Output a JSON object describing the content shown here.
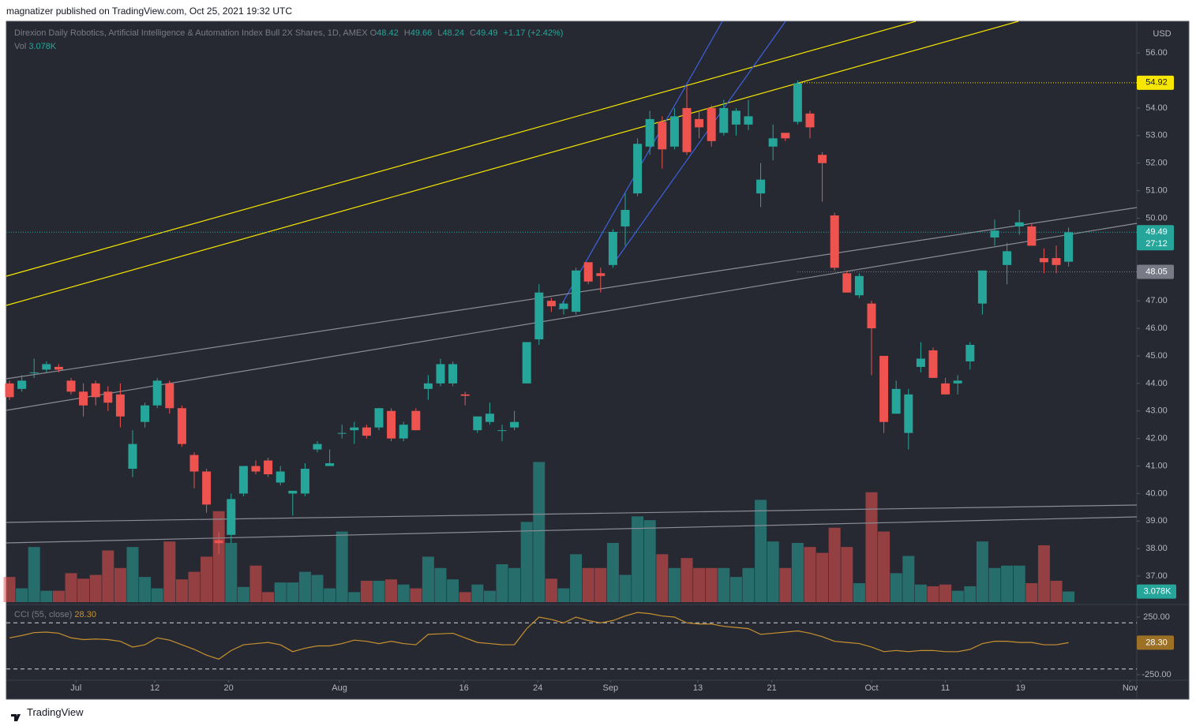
{
  "chart_data": {
    "type": "candlestick",
    "publisher_note": "magnatizer published on TradingView.com, Oct 25, 2021 19:32 UTC",
    "symbol": "Direxion Daily Robotics, Artificial Intelligence & Automation Index Bull 2X Shares, 1D, AMEX",
    "ohlc_keys": [
      "O",
      "H",
      "L",
      "C"
    ],
    "header": {
      "open": 48.42,
      "high": 49.66,
      "low": 48.24,
      "close": 49.49,
      "change": "+1.17 (+2.42%)"
    },
    "currency": "USD",
    "brand": "TradingView",
    "up_color": "#26a69a",
    "down_color": "#ef5350",
    "open": [
      44.0,
      43.8,
      44.4,
      44.5,
      44.6,
      44.1,
      43.7,
      44.0,
      43.7,
      43.6,
      40.9,
      42.6,
      43.2,
      44.0,
      43.1,
      41.4,
      40.8,
      38.3,
      38.5,
      40.0,
      41.0,
      41.2,
      40.4,
      40.0,
      40.0,
      41.6,
      41.0,
      42.2,
      42.3,
      42.4,
      42.4,
      43.0,
      42.0,
      43.0,
      43.8,
      44.0,
      44.0,
      43.6,
      42.3,
      42.6,
      42.3,
      42.4,
      44.0,
      45.6,
      47.0,
      46.7,
      46.6,
      48.4,
      48.0,
      48.3,
      49.7,
      50.9,
      52.6,
      53.5,
      52.6,
      54.0,
      53.6,
      54.0,
      53.1,
      53.4,
      53.4,
      50.9,
      52.6,
      53.1,
      53.5,
      53.8,
      52.3,
      50.1,
      48.0,
      47.2,
      46.9,
      45.0,
      42.9,
      42.2,
      44.6,
      45.2,
      44.0,
      44.0,
      44.8,
      46.9,
      49.3,
      48.3,
      49.7,
      49.7,
      48.55,
      48.55,
      48.42
    ],
    "high": [
      44.1,
      44.3,
      44.9,
      44.8,
      44.7,
      44.2,
      44.0,
      44.1,
      43.9,
      44.0,
      42.3,
      43.3,
      44.2,
      44.1,
      43.2,
      41.5,
      40.9,
      38.6,
      40.0,
      41.0,
      41.2,
      41.3,
      41.0,
      40.1,
      41.1,
      41.9,
      41.6,
      42.5,
      42.6,
      42.5,
      43.1,
      43.1,
      42.6,
      43.1,
      44.3,
      44.9,
      44.8,
      43.7,
      42.8,
      43.3,
      42.5,
      43.0,
      45.5,
      47.6,
      47.1,
      47.0,
      48.2,
      48.4,
      48.2,
      49.6,
      50.9,
      52.9,
      53.9,
      53.7,
      54.0,
      54.8,
      53.9,
      54.1,
      54.3,
      54.0,
      54.3,
      52.0,
      53.4,
      53.1,
      55.0,
      53.9,
      52.4,
      50.2,
      48.1,
      48.0,
      47.0,
      45.0,
      44.1,
      43.8,
      45.5,
      45.3,
      44.2,
      44.3,
      45.5,
      48.1,
      49.95,
      49.1,
      50.3,
      49.8,
      48.9,
      49.0,
      49.66
    ],
    "low": [
      43.4,
      43.7,
      44.2,
      44.4,
      44.4,
      43.6,
      42.8,
      43.2,
      43.0,
      42.4,
      40.6,
      42.4,
      43.1,
      42.9,
      41.7,
      40.2,
      39.3,
      37.8,
      38.2,
      39.9,
      40.7,
      40.6,
      40.3,
      39.2,
      39.9,
      41.5,
      41.0,
      42.0,
      41.8,
      42.0,
      42.3,
      41.9,
      41.9,
      42.3,
      43.4,
      43.9,
      43.9,
      43.2,
      42.2,
      42.5,
      41.9,
      42.3,
      44.0,
      45.4,
      46.6,
      46.5,
      46.5,
      47.6,
      47.3,
      48.2,
      49.0,
      50.8,
      52.3,
      51.8,
      52.5,
      52.3,
      52.9,
      52.6,
      53.0,
      53.0,
      53.2,
      50.4,
      52.1,
      52.8,
      53.4,
      52.9,
      50.6,
      48.1,
      47.3,
      47.1,
      44.3,
      42.2,
      42.9,
      41.6,
      44.4,
      44.2,
      43.6,
      43.6,
      44.5,
      46.5,
      49.0,
      47.6,
      49.4,
      49.0,
      48.0,
      48.0,
      48.24
    ],
    "close": [
      43.5,
      44.1,
      44.4,
      44.7,
      44.5,
      43.7,
      43.2,
      43.5,
      43.3,
      42.8,
      41.8,
      43.2,
      44.1,
      43.1,
      41.8,
      40.8,
      39.6,
      38.2,
      39.8,
      41.0,
      40.8,
      40.7,
      40.8,
      40.1,
      40.9,
      41.8,
      41.1,
      42.2,
      42.4,
      42.1,
      43.1,
      42.0,
      42.5,
      42.3,
      44.0,
      44.7,
      44.7,
      43.55,
      42.8,
      42.9,
      42.3,
      42.6,
      45.5,
      47.3,
      46.8,
      46.9,
      48.1,
      47.7,
      47.9,
      49.5,
      50.3,
      52.7,
      53.6,
      52.5,
      53.7,
      52.4,
      53.3,
      52.8,
      54.0,
      53.9,
      53.7,
      51.4,
      52.9,
      52.9,
      54.9,
      53.3,
      52.0,
      48.2,
      47.3,
      47.9,
      46.0,
      42.6,
      43.8,
      43.6,
      44.9,
      44.2,
      43.6,
      44.1,
      45.4,
      48.1,
      49.55,
      48.8,
      49.85,
      49.0,
      48.4,
      48.3,
      49.49
    ],
    "volume": [
      7.3,
      4.0,
      16,
      3.3,
      3.3,
      8.4,
      6.8,
      7.9,
      15,
      9.9,
      16,
      7.3,
      4.0,
      17.6,
      6.6,
      8.8,
      13.2,
      26.4,
      17.2,
      4.4,
      10.6,
      2.9,
      5.7,
      5.7,
      8.8,
      7.9,
      4.0,
      20.5,
      2.9,
      6.2,
      6.2,
      6.6,
      5.1,
      4.0,
      13.2,
      9.9,
      6.6,
      2.9,
      5.1,
      3.3,
      11,
      9.9,
      23.3,
      40.7,
      6.8,
      4.0,
      13.9,
      9.9,
      9.9,
      17.2,
      7.9,
      24.9,
      23.8,
      13.9,
      9.9,
      12.8,
      9.9,
      9.9,
      9.9,
      7.3,
      9.9,
      29.7,
      17.6,
      9.9,
      17.2,
      16,
      14.3,
      21.6,
      16,
      5.5,
      31.9,
      20.5,
      8.4,
      13.4,
      5.1,
      4.6,
      5.1,
      3.3,
      4.6,
      17.6,
      9.9,
      10.6,
      10.6,
      5.5,
      16.5,
      6.2,
      3.078
    ],
    "volume_title": "Vol",
    "volume_lim": [
      0,
      55
    ],
    "volume_tag": {
      "value": 3.078,
      "label": "3.078K"
    },
    "ylim": [
      36.0,
      57.15
    ],
    "yticks": [
      {
        "value": 37,
        "label": "37.00"
      },
      {
        "value": 38,
        "label": "38.00"
      },
      {
        "value": 39,
        "label": "39.00"
      },
      {
        "value": 40,
        "label": "40.00"
      },
      {
        "value": 41,
        "label": "41.00"
      },
      {
        "value": 42,
        "label": "42.00"
      },
      {
        "value": 43,
        "label": "43.00"
      },
      {
        "value": 44,
        "label": "44.00"
      },
      {
        "value": 45,
        "label": "45.00"
      },
      {
        "value": 46,
        "label": "46.00"
      },
      {
        "value": 47,
        "label": "47.00"
      },
      {
        "value": 48,
        "label": "48.00"
      },
      {
        "value": 49,
        "label": "49.00"
      },
      {
        "value": 50,
        "label": "50.00"
      },
      {
        "value": 51,
        "label": "51.00"
      },
      {
        "value": 52,
        "label": "52.00"
      },
      {
        "value": 53,
        "label": "53.00"
      },
      {
        "value": 54,
        "label": "54.00"
      },
      {
        "value": 55,
        "label": "55.00"
      },
      {
        "value": 56,
        "label": "56.00"
      }
    ],
    "xticks": [
      {
        "value": 5.4,
        "label": "Jul"
      },
      {
        "value": 11.8,
        "label": "12"
      },
      {
        "value": 17.8,
        "label": "20"
      },
      {
        "value": 26.8,
        "label": "Aug"
      },
      {
        "value": 36.9,
        "label": "16"
      },
      {
        "value": 42.9,
        "label": "24"
      },
      {
        "value": 48.8,
        "label": "Sep"
      },
      {
        "value": 55.9,
        "label": "13"
      },
      {
        "value": 61.9,
        "label": "21"
      },
      {
        "value": 70.0,
        "label": "Oct"
      },
      {
        "value": 76.0,
        "label": "11"
      },
      {
        "value": 82.1,
        "label": "19"
      },
      {
        "value": 91.0,
        "label": "Nov"
      }
    ],
    "last_price": {
      "value": 49.49,
      "countdown": "27:12"
    },
    "levels": [
      {
        "value": 54.92,
        "color": "#f7e600"
      },
      {
        "value": 48.05,
        "color": "#787b86"
      }
    ],
    "cci": {
      "title": "CCI (55, close)",
      "color": "#c7902f",
      "ylim": [
        -250,
        250
      ],
      "yticks": [
        {
          "value": 250,
          "label": "250.00"
        },
        {
          "value": -250,
          "label": "-250.00"
        }
      ],
      "bands": [
        200,
        -200
      ],
      "tag": {
        "value": 28.3,
        "label": "28.30"
      },
      "values": [
        70,
        90,
        115,
        120,
        110,
        70,
        55,
        60,
        55,
        40,
        -10,
        10,
        70,
        50,
        10,
        -30,
        -80,
        -115,
        -40,
        10,
        20,
        30,
        10,
        -50,
        -20,
        0,
        0,
        20,
        50,
        40,
        20,
        40,
        20,
        10,
        100,
        105,
        110,
        70,
        30,
        20,
        10,
        10,
        150,
        250,
        230,
        200,
        250,
        220,
        200,
        220,
        260,
        290,
        280,
        260,
        250,
        200,
        190,
        190,
        170,
        160,
        150,
        100,
        110,
        120,
        130,
        110,
        80,
        40,
        30,
        20,
        -10,
        -50,
        -40,
        -50,
        -40,
        -40,
        -50,
        -50,
        -30,
        20,
        40,
        40,
        30,
        30,
        10,
        10,
        28.3
      ]
    }
  }
}
